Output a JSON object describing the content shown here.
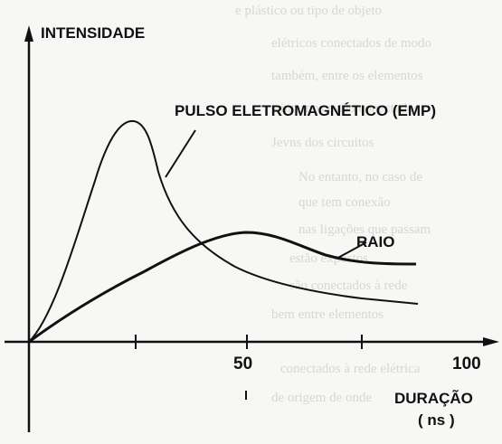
{
  "labels": {
    "y_axis": "INTENSIDADE",
    "emp_curve": "PULSO ELETROMAGNÉTICO (EMP)",
    "lightning_curve": "RAIO",
    "x_axis": "DURAÇÃO",
    "x_unit": "( ns )"
  },
  "ticks": [
    {
      "value": 50,
      "label": "50"
    },
    {
      "value": 100,
      "label": "100"
    }
  ],
  "colors": {
    "ink": "#111111",
    "paper": "#f7f7f5",
    "bleed": "#c9c9c6"
  }
}
